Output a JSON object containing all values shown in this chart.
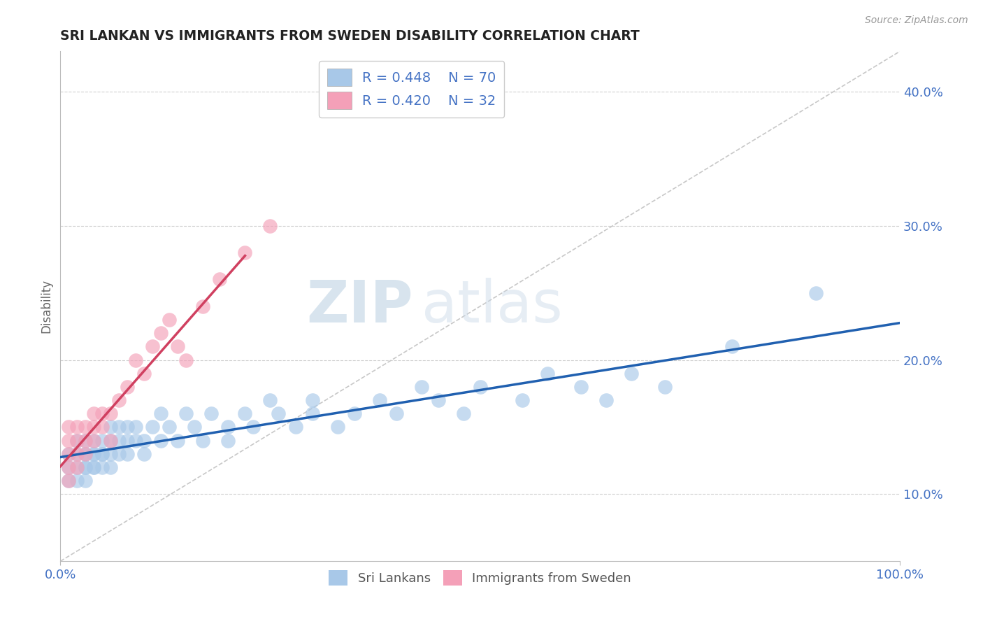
{
  "title": "SRI LANKAN VS IMMIGRANTS FROM SWEDEN DISABILITY CORRELATION CHART",
  "source": "Source: ZipAtlas.com",
  "ylabel_label": "Disability",
  "xlim": [
    0,
    100
  ],
  "ylim": [
    5,
    43
  ],
  "right_yticks": [
    10,
    20,
    30,
    40
  ],
  "right_ytick_labels": [
    "10.0%",
    "20.0%",
    "30.0%",
    "40.0%"
  ],
  "legend_r1": "R = 0.448",
  "legend_n1": "N = 70",
  "legend_r2": "R = 0.420",
  "legend_n2": "N = 32",
  "color_blue": "#a8c8e8",
  "color_pink": "#f4a0b8",
  "color_blue_line": "#2060b0",
  "color_pink_line": "#d04060",
  "watermark_zip": "ZIP",
  "watermark_atlas": "atlas",
  "sri_lankan_x": [
    1,
    1,
    1,
    2,
    2,
    2,
    2,
    3,
    3,
    3,
    3,
    3,
    3,
    4,
    4,
    4,
    4,
    4,
    5,
    5,
    5,
    5,
    6,
    6,
    6,
    6,
    7,
    7,
    7,
    8,
    8,
    8,
    9,
    9,
    10,
    10,
    11,
    12,
    12,
    13,
    14,
    15,
    16,
    17,
    18,
    20,
    20,
    22,
    23,
    25,
    26,
    28,
    30,
    30,
    33,
    35,
    38,
    40,
    43,
    45,
    48,
    50,
    55,
    58,
    62,
    65,
    68,
    72,
    80,
    90
  ],
  "sri_lankan_y": [
    11,
    12,
    13,
    11,
    12,
    13,
    14,
    11,
    12,
    13,
    14,
    12,
    13,
    12,
    13,
    14,
    13,
    12,
    13,
    14,
    12,
    13,
    14,
    13,
    15,
    12,
    14,
    13,
    15,
    14,
    15,
    13,
    14,
    15,
    14,
    13,
    15,
    14,
    16,
    15,
    14,
    16,
    15,
    14,
    16,
    15,
    14,
    16,
    15,
    17,
    16,
    15,
    16,
    17,
    15,
    16,
    17,
    16,
    18,
    17,
    16,
    18,
    17,
    19,
    18,
    17,
    19,
    18,
    21,
    25
  ],
  "sweden_x": [
    1,
    1,
    1,
    1,
    1,
    2,
    2,
    2,
    2,
    3,
    3,
    3,
    4,
    4,
    4,
    5,
    5,
    6,
    6,
    7,
    8,
    9,
    10,
    11,
    12,
    13,
    14,
    15,
    17,
    19,
    22,
    25
  ],
  "sweden_y": [
    11,
    12,
    13,
    14,
    15,
    12,
    13,
    14,
    15,
    13,
    14,
    15,
    14,
    15,
    16,
    15,
    16,
    14,
    16,
    17,
    18,
    20,
    19,
    21,
    22,
    23,
    21,
    20,
    24,
    26,
    28,
    30
  ]
}
